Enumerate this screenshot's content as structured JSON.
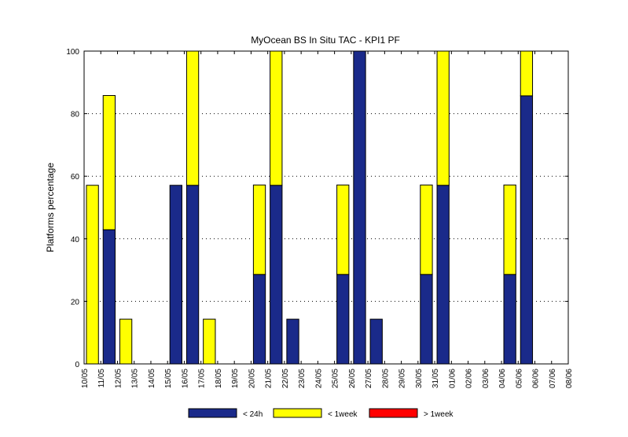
{
  "chart_data": {
    "type": "bar",
    "stacked": true,
    "title": "MyOcean  BS In Situ TAC - KPI1  PF",
    "ylabel": "Platforms percentage",
    "xlabel": "",
    "ylim": [
      0,
      100
    ],
    "yticks": [
      0,
      20,
      40,
      60,
      80,
      100
    ],
    "grid": "horizontal dotted",
    "legend_position": "bottom",
    "x_tick_labels": [
      "10/05",
      "11/05",
      "12/05",
      "13/05",
      "14/05",
      "15/05",
      "16/05",
      "17/05",
      "18/05",
      "19/05",
      "20/05",
      "21/05",
      "22/05",
      "23/05",
      "24/05",
      "25/05",
      "26/05",
      "27/05",
      "28/05",
      "29/05",
      "30/05",
      "31/05",
      "01/06",
      "02/06",
      "03/06",
      "04/06",
      "05/06",
      "06/06",
      "07/06",
      "08/06"
    ],
    "categories": [
      "11/05",
      "12/05",
      "13/05",
      "14/05",
      "15/05",
      "16/05",
      "17/05",
      "18/05",
      "19/05",
      "20/05",
      "21/05",
      "22/05",
      "23/05",
      "24/05",
      "25/05",
      "26/05",
      "27/05",
      "28/05",
      "29/05",
      "30/05",
      "31/05",
      "01/06",
      "02/06",
      "03/06",
      "04/06",
      "05/06",
      "06/06",
      "07/06"
    ],
    "series": [
      {
        "name": "< 24h",
        "color": "#1a2a8a",
        "values": [
          0,
          42.9,
          0,
          0,
          0,
          57.1,
          57.1,
          0,
          0,
          0,
          28.6,
          57.1,
          14.3,
          0,
          0,
          28.6,
          100,
          14.3,
          0,
          0,
          28.6,
          57.1,
          0,
          0,
          0,
          28.6,
          85.7,
          0
        ]
      },
      {
        "name": "< 1week",
        "color": "#ffff00",
        "values": [
          57.1,
          42.9,
          14.3,
          0,
          0,
          0,
          42.9,
          14.3,
          0,
          0,
          28.6,
          42.9,
          0,
          0,
          0,
          28.6,
          0,
          0,
          0,
          0,
          28.6,
          42.9,
          0,
          0,
          0,
          28.6,
          14.3,
          0
        ]
      },
      {
        "name": "> 1week",
        "color": "#ff0000",
        "values": [
          0,
          0,
          0,
          0,
          0,
          0,
          0,
          0,
          0,
          0,
          0,
          0,
          0,
          0,
          0,
          0,
          0,
          0,
          0,
          0,
          0,
          0,
          0,
          0,
          0,
          0,
          0,
          0
        ]
      }
    ]
  }
}
